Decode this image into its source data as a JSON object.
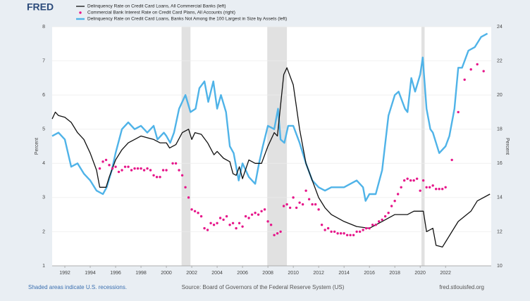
{
  "chart_data": {
    "type": "line",
    "logo": "FRED",
    "note": "Shaded areas indicate U.S. recessions.",
    "source": "Source: Board of Governors of the Federal Reserve System (US)",
    "url": "fred.stlouisfed.org",
    "y_label": "Percent",
    "y2_label": "Percent",
    "xlim": [
      1991,
      2025.6
    ],
    "xticks": [
      1992,
      1994,
      1996,
      1998,
      2000,
      2002,
      2004,
      2006,
      2008,
      2010,
      2012,
      2014,
      2016,
      2018,
      2020,
      2022
    ],
    "ylim": [
      1,
      8
    ],
    "yticks": [
      1,
      2,
      3,
      4,
      5,
      6,
      7,
      8
    ],
    "y2lim": [
      10,
      24
    ],
    "y2ticks": [
      10,
      12,
      14,
      16,
      18,
      20,
      22,
      24
    ],
    "grid": true,
    "recessions": [
      [
        2001.2,
        2001.9
      ],
      [
        2007.95,
        2009.5
      ],
      [
        2020.1,
        2020.35
      ]
    ],
    "series": [
      {
        "name": "Delinquency Rate on Credit Card Loans, All Commercial Banks (left)",
        "color": "#111111",
        "style": "line",
        "x": [
          1991,
          1991.25,
          1991.5,
          1992,
          1992.5,
          1993,
          1993.5,
          1994,
          1994.5,
          1994.75,
          1995.25,
          1995.5,
          1996,
          1996.5,
          1997,
          1997.5,
          1998,
          1998.5,
          1999,
          1999.5,
          2000,
          2000.25,
          2000.75,
          2001.25,
          2001.75,
          2002,
          2002.25,
          2002.75,
          2003.25,
          2003.75,
          2004,
          2004.5,
          2005,
          2005.25,
          2005.5,
          2005.75,
          2006,
          2006.5,
          2007,
          2007.5,
          2008,
          2008.5,
          2008.75,
          2009,
          2009.25,
          2009.5,
          2010,
          2010.5,
          2011,
          2011.5,
          2012,
          2012.5,
          2013,
          2014,
          2015,
          2016,
          2017,
          2018,
          2019,
          2019.5,
          2020.25,
          2020.5,
          2021,
          2021.25,
          2021.75,
          2022,
          2022.5,
          2023,
          2024,
          2024.5,
          2025.5
        ],
        "values": [
          5.3,
          5.5,
          5.4,
          5.35,
          5.2,
          4.9,
          4.7,
          4.3,
          3.8,
          3.3,
          3.3,
          3.6,
          4.1,
          4.4,
          4.6,
          4.7,
          4.8,
          4.75,
          4.7,
          4.6,
          4.6,
          4.45,
          4.55,
          4.9,
          5.0,
          4.7,
          4.9,
          4.85,
          4.6,
          4.25,
          4.35,
          4.15,
          4.05,
          3.7,
          3.65,
          3.9,
          3.55,
          4.1,
          4.0,
          4.0,
          4.5,
          4.9,
          4.8,
          5.7,
          6.6,
          6.8,
          6.3,
          5.0,
          4.0,
          3.5,
          3.0,
          2.7,
          2.5,
          2.3,
          2.15,
          2.1,
          2.3,
          2.5,
          2.5,
          2.6,
          2.6,
          2.0,
          2.1,
          1.6,
          1.55,
          1.7,
          2.0,
          2.3,
          2.6,
          2.9,
          3.1
        ]
      },
      {
        "name": "Commercial Bank Interest Rate on Credit Card Plans, All Accounts (right)",
        "color": "#e6168a",
        "style": "dots",
        "axis": "y2",
        "x": [
          1994.75,
          1995,
          1995.25,
          1995.5,
          1995.75,
          1996,
          1996.25,
          1996.5,
          1996.75,
          1997,
          1997.25,
          1997.5,
          1997.75,
          1998,
          1998.25,
          1998.5,
          1998.75,
          1999,
          1999.25,
          1999.5,
          1999.75,
          2000,
          2000.5,
          2000.75,
          2001,
          2001.25,
          2001.5,
          2001.75,
          2002,
          2002.25,
          2002.5,
          2002.75,
          2003,
          2003.25,
          2003.5,
          2003.75,
          2004,
          2004.25,
          2004.5,
          2004.75,
          2005,
          2005.25,
          2005.5,
          2005.75,
          2006,
          2006.25,
          2006.5,
          2006.75,
          2007,
          2007.25,
          2007.5,
          2007.75,
          2008,
          2008.25,
          2008.5,
          2008.75,
          2009,
          2009.25,
          2009.5,
          2009.75,
          2010,
          2010.25,
          2010.5,
          2010.75,
          2011,
          2011.25,
          2011.5,
          2011.75,
          2012,
          2012.25,
          2012.5,
          2012.75,
          2013,
          2013.25,
          2013.5,
          2013.75,
          2014,
          2014.25,
          2014.5,
          2014.75,
          2015,
          2015.25,
          2015.5,
          2015.75,
          2016,
          2016.25,
          2016.5,
          2016.75,
          2017,
          2017.25,
          2017.5,
          2017.75,
          2018,
          2018.25,
          2018.5,
          2018.75,
          2019,
          2019.25,
          2019.5,
          2019.75,
          2020,
          2020.25,
          2020.5,
          2020.75,
          2021,
          2021.25,
          2021.5,
          2021.75,
          2022,
          2022.5,
          2023,
          2023.5,
          2024,
          2024.5,
          2025
        ],
        "values": [
          15.7,
          16.1,
          16.2,
          15.9,
          15.7,
          15.8,
          15.5,
          15.6,
          15.8,
          15.8,
          15.6,
          15.7,
          15.7,
          15.7,
          15.6,
          15.7,
          15.6,
          15.3,
          15.2,
          15.2,
          15.6,
          15.6,
          16.0,
          16.0,
          15.6,
          15.3,
          14.6,
          14.0,
          13.3,
          13.2,
          13.1,
          12.9,
          12.2,
          12.1,
          12.5,
          12.4,
          12.5,
          12.8,
          12.7,
          12.9,
          12.4,
          12.5,
          12.2,
          12.5,
          12.3,
          12.9,
          12.8,
          13.0,
          13.1,
          13.0,
          13.2,
          13.3,
          12.6,
          12.4,
          11.8,
          11.9,
          12.0,
          13.5,
          13.6,
          13.4,
          14.0,
          13.4,
          13.7,
          13.6,
          14.4,
          13.9,
          13.6,
          13.6,
          13.3,
          12.4,
          12.1,
          12.2,
          12.0,
          12.0,
          11.9,
          11.9,
          11.9,
          11.8,
          11.8,
          11.8,
          12.0,
          12.0,
          12.1,
          12.2,
          12.2,
          12.4,
          12.4,
          12.6,
          12.7,
          12.9,
          13.1,
          13.5,
          13.8,
          14.2,
          14.6,
          15.0,
          15.1,
          15.0,
          15.0,
          15.1,
          14.4,
          15.0,
          14.6,
          14.6,
          14.7,
          14.5,
          14.5,
          14.5,
          14.6,
          16.2,
          19.0,
          20.9,
          21.5,
          21.8,
          21.4
        ]
      },
      {
        "name": "Delinquency Rate on Credit Card Loans, Banks Not Among the 100 Largest in Size by Assets (left)",
        "color": "#4fb3e8",
        "style": "line",
        "x": [
          1991,
          1991.5,
          1992,
          1992.5,
          1993,
          1993.5,
          1994,
          1994.5,
          1995,
          1995.3,
          1995.7,
          1996,
          1996.5,
          1997,
          1997.5,
          1998,
          1998.5,
          1999,
          1999.3,
          1999.8,
          2000,
          2000.3,
          2000.6,
          2001,
          2001.5,
          2001.9,
          2002.3,
          2002.6,
          2003,
          2003.3,
          2003.7,
          2004,
          2004.3,
          2004.7,
          2005,
          2005.3,
          2005.7,
          2006,
          2006.5,
          2007,
          2007.3,
          2007.6,
          2008,
          2008.5,
          2008.8,
          2009,
          2009.3,
          2009.6,
          2010,
          2010.5,
          2011,
          2011.5,
          2012,
          2012.5,
          2013,
          2014,
          2014.5,
          2015,
          2015.5,
          2015.7,
          2016,
          2016.5,
          2017,
          2017.5,
          2018,
          2018.3,
          2018.8,
          2019,
          2019.3,
          2019.6,
          2020,
          2020.2,
          2020.5,
          2020.8,
          2021,
          2021.5,
          2022,
          2022.3,
          2022.7,
          2023,
          2023.3,
          2023.8,
          2024.3,
          2024.8,
          2025.3
        ],
        "values": [
          4.8,
          4.9,
          4.7,
          3.9,
          4.0,
          3.7,
          3.5,
          3.2,
          3.1,
          3.3,
          3.8,
          4.3,
          5.0,
          5.2,
          5.0,
          5.1,
          4.9,
          5.1,
          4.7,
          4.9,
          4.8,
          4.6,
          4.9,
          5.6,
          6.0,
          5.5,
          5.6,
          6.2,
          6.4,
          5.8,
          6.4,
          5.6,
          6.0,
          5.5,
          4.5,
          4.3,
          3.5,
          4.0,
          3.6,
          3.4,
          4.0,
          4.5,
          5.1,
          5.0,
          5.6,
          4.7,
          4.6,
          5.1,
          5.1,
          4.6,
          4.0,
          3.5,
          3.3,
          3.2,
          3.3,
          3.3,
          3.4,
          3.5,
          3.3,
          2.9,
          3.1,
          3.1,
          3.8,
          5.4,
          6.0,
          6.1,
          5.6,
          5.5,
          6.5,
          6.1,
          6.6,
          7.1,
          5.6,
          5.0,
          4.9,
          4.3,
          4.5,
          4.8,
          5.6,
          6.8,
          6.8,
          7.3,
          7.4,
          7.7,
          7.8
        ]
      }
    ]
  }
}
